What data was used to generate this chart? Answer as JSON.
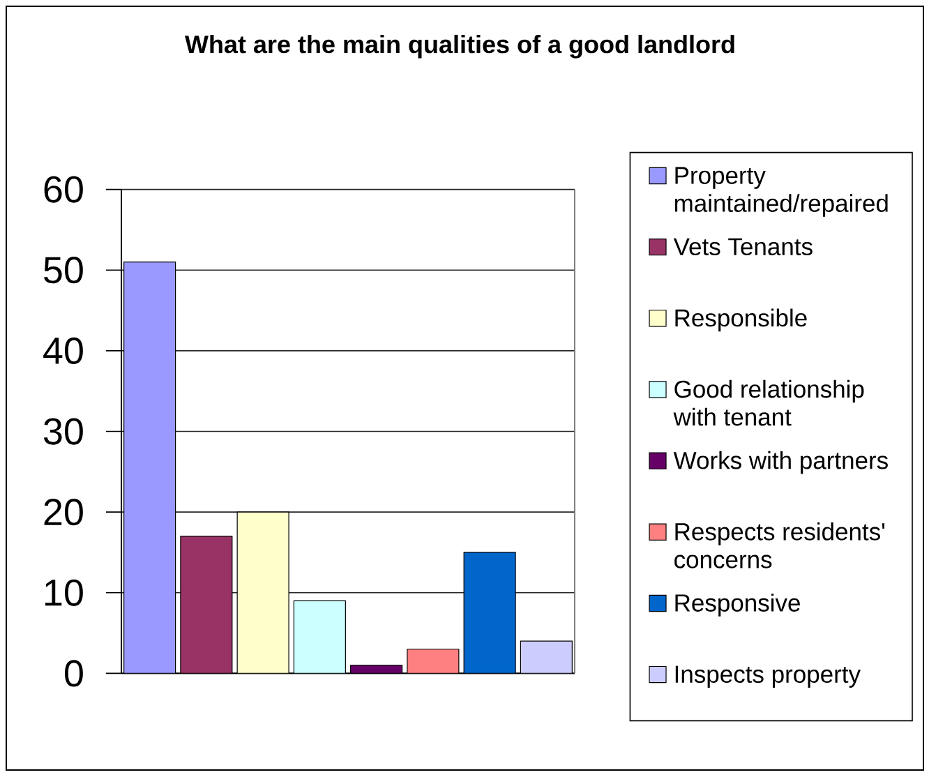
{
  "chart_data": {
    "type": "bar",
    "title": "What are the main qualities of a good landlord",
    "categories": [
      null
    ],
    "series": [
      {
        "name": "Property maintained/repaired",
        "color": "#9999ff",
        "values": [
          51
        ]
      },
      {
        "name": "Vets Tenants",
        "color": "#993366",
        "values": [
          17
        ]
      },
      {
        "name": "Responsible",
        "color": "#ffffcc",
        "values": [
          20
        ]
      },
      {
        "name": "Good relationship with tenant",
        "color": "#ccffff",
        "values": [
          9
        ]
      },
      {
        "name": "Works with partners",
        "color": "#660066",
        "values": [
          1
        ]
      },
      {
        "name": "Respects residents' concerns",
        "color": "#ff8080",
        "values": [
          3
        ]
      },
      {
        "name": "Responsive",
        "color": "#0066cc",
        "values": [
          15
        ]
      },
      {
        "name": "Inspects property",
        "color": "#ccccff",
        "values": [
          4
        ]
      }
    ],
    "ylim": [
      0,
      60
    ],
    "yticks": [
      0,
      10,
      20,
      30,
      40,
      50,
      60
    ],
    "grid": "y",
    "legend": "right"
  }
}
